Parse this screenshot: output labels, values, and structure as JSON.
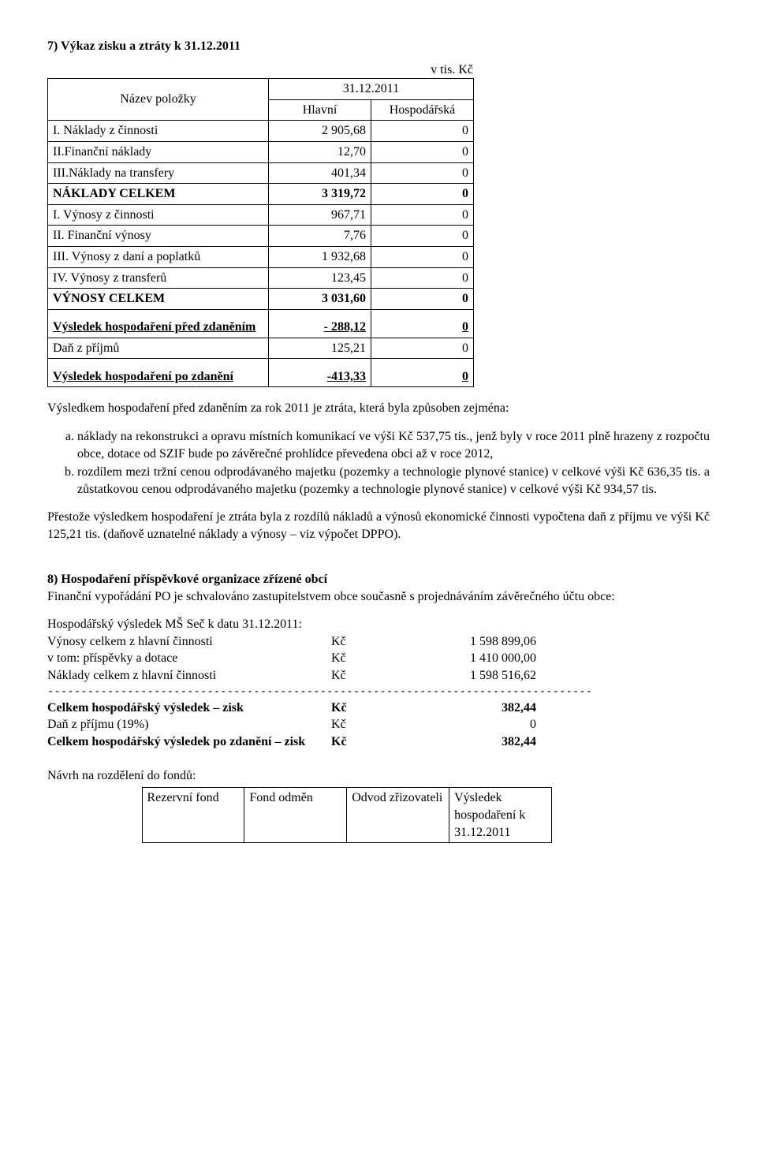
{
  "section7": {
    "title": "7) Výkaz zisku a ztráty k 31.12.2011",
    "unit": "v tis. Kč",
    "header_name": "Název položky",
    "period": "31.12.2011",
    "col_a": "Hlavní",
    "col_b": "Hospodářská",
    "rows": [
      {
        "label": "I. Náklady z činnosti",
        "a": "2 905,68",
        "b": "0",
        "bold": false
      },
      {
        "label": "II.Finanční náklady",
        "a": "12,70",
        "b": "0",
        "bold": false
      },
      {
        "label": "III.Náklady na transfery",
        "a": "401,34",
        "b": "0",
        "bold": false
      },
      {
        "label": "NÁKLADY CELKEM",
        "a": "3 319,72",
        "b": "0",
        "bold": true
      },
      {
        "label": "I. Výnosy z činnosti",
        "a": "967,71",
        "b": "0",
        "bold": false
      },
      {
        "label": "II. Finanční výnosy",
        "a": "7,76",
        "b": "0",
        "bold": false
      },
      {
        "label": "III. Výnosy z daní a poplatků",
        "a": "1 932,68",
        "b": "0",
        "bold": false
      },
      {
        "label": "IV. Výnosy z transferů",
        "a": "123,45",
        "b": "0",
        "bold": false
      },
      {
        "label": "VÝNOSY CELKEM",
        "a": "3 031,60",
        "b": "0",
        "bold": true
      }
    ],
    "result_rows": [
      {
        "label": "Výsledek hospodaření před zdaněním",
        "a": "- 288,12",
        "b": "0",
        "bold": true,
        "underline": true,
        "tall": true
      },
      {
        "label": "Daň z příjmů",
        "a": "125,21",
        "b": "0",
        "bold": false,
        "underline": false,
        "tall": false
      },
      {
        "label": "Výsledek hospodaření po zdanění",
        "a": "-413,33",
        "b": "0",
        "bold": true,
        "underline": true,
        "tall": true
      }
    ]
  },
  "summary": {
    "lead": "Výsledkem hospodaření před zdaněním za rok 2011 je ztráta, která byla způsoben zejména:",
    "items": [
      "náklady na rekonstrukci a opravu místních komunikací ve výši Kč 537,75 tis., jenž byly v roce 2011 plně hrazeny z rozpočtu obce, dotace od SZIF bude po závěrečné prohlídce převedena obci až v roce 2012,",
      " rozdílem mezi tržní cenou odprodávaného majetku (pozemky a technologie plynové stanice) v celkové výši Kč 636,35 tis. a zůstatkovou cenou odprodávaného majetku (pozemky a technologie plynové stanice) v celkové výši Kč 934,57 tis."
    ],
    "para2": "Přestože výsledkem hospodaření je ztráta byla z rozdílů nákladů a výnosů ekonomické činnosti vypočtena daň z příjmu ve výši Kč 125,21 tis. (daňově uznatelné náklady a výnosy – viz výpočet DPPO)."
  },
  "section8": {
    "title": "8) Hospodaření příspěvkové organizace zřízené obcí",
    "intro": "Finanční vypořádání PO je schvalováno zastupitelstvem obce současně s projednáváním závěrečného účtu obce:",
    "subhead": "Hospodářský výsledek MŠ Seč k datu 31.12.2011:",
    "lines": [
      {
        "k": "Výnosy celkem z hlavní činnosti",
        "v": "Kč",
        "a": "1 598 899,06"
      },
      {
        "k": "v tom: příspěvky a dotace",
        "v": "Kč",
        "a": "1 410 000,00"
      },
      {
        "k": "Náklady celkem z hlavní činnosti",
        "v": "Kč",
        "a": "1 598 516,62"
      }
    ],
    "totals": [
      {
        "k": "Celkem hospodářský výsledek – zisk",
        "v": "Kč",
        "a": "382,44",
        "bold": true
      },
      {
        "k": "Daň z příjmu (19%)",
        "v": "Kč",
        "a": "0",
        "bold": false
      },
      {
        "k": "Celkem hospodářský výsledek po zdanění – zisk",
        "v": "Kč",
        "a": "382,44",
        "bold": true
      }
    ],
    "alloc_label": "Návrh na rozdělení do fondů:",
    "alloc_cols": [
      "Rezervní fond",
      "Fond odměn",
      "Odvod zřizovateli",
      "Výsledek hospodaření k 31.12.2011"
    ]
  },
  "style": {
    "text_color": "#000000",
    "background": "#ffffff",
    "border_color": "#000000",
    "font_family": "Times New Roman",
    "base_fontsize_pt": 12
  }
}
